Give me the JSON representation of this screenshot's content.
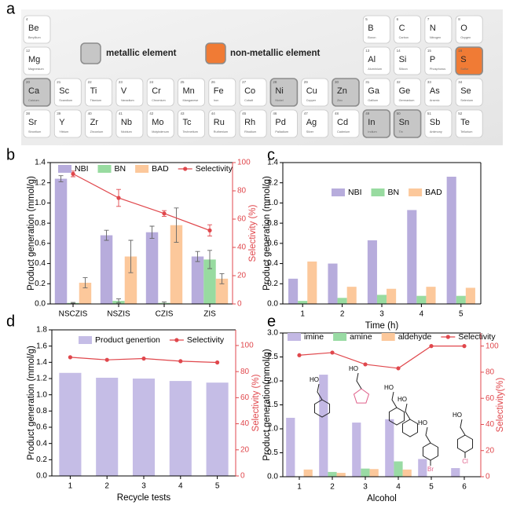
{
  "panel_labels": [
    "a",
    "b",
    "c",
    "d",
    "e"
  ],
  "periodic_table": {
    "legend": [
      {
        "name": "metallic element",
        "color": "#c6c6c6"
      },
      {
        "name": "non-metallic element",
        "color": "#f07b35"
      }
    ],
    "rows": [
      [
        {
          "number": 4,
          "symbol": "Be",
          "name": "Beryllium"
        },
        null,
        null,
        null,
        null,
        null,
        null,
        null,
        null,
        null,
        null,
        {
          "number": 5,
          "symbol": "B",
          "name": "Boron"
        },
        {
          "number": 6,
          "symbol": "C",
          "name": "Carbon"
        },
        {
          "number": 7,
          "symbol": "N",
          "name": "Nitrogen"
        },
        {
          "number": 8,
          "symbol": "O",
          "name": "Oxygen"
        }
      ],
      [
        {
          "number": 12,
          "symbol": "Mg",
          "name": "Magnesium"
        },
        null,
        null,
        null,
        null,
        null,
        null,
        null,
        null,
        null,
        null,
        {
          "number": 13,
          "symbol": "Al",
          "name": "Aluminium"
        },
        {
          "number": 14,
          "symbol": "Si",
          "name": "Silicon"
        },
        {
          "number": 15,
          "symbol": "P",
          "name": "Phosphorus"
        },
        {
          "number": 16,
          "symbol": "S",
          "name": "Sulfur",
          "group": 1
        }
      ],
      [
        {
          "number": 20,
          "symbol": "Ca",
          "name": "Calcium",
          "group": 0
        },
        {
          "number": 21,
          "symbol": "Sc",
          "name": "Scandium"
        },
        {
          "number": 22,
          "symbol": "Ti",
          "name": "Titanium"
        },
        {
          "number": 23,
          "symbol": "V",
          "name": "Vanadium"
        },
        {
          "number": 24,
          "symbol": "Cr",
          "name": "Chromium"
        },
        {
          "number": 25,
          "symbol": "Mn",
          "name": "Manganese"
        },
        {
          "number": 26,
          "symbol": "Fe",
          "name": "Iron"
        },
        {
          "number": 27,
          "symbol": "Co",
          "name": "Cobalt"
        },
        {
          "number": 28,
          "symbol": "Ni",
          "name": "Nickel",
          "group": 0
        },
        {
          "number": 29,
          "symbol": "Cu",
          "name": "Copper"
        },
        {
          "number": 30,
          "symbol": "Zn",
          "name": "Zinc",
          "group": 0
        },
        {
          "number": 31,
          "symbol": "Ga",
          "name": "Gallium"
        },
        {
          "number": 32,
          "symbol": "Ge",
          "name": "Germanium"
        },
        {
          "number": 33,
          "symbol": "As",
          "name": "Arsenic"
        },
        {
          "number": 34,
          "symbol": "Se",
          "name": "Selenium"
        }
      ],
      [
        {
          "number": 38,
          "symbol": "Sr",
          "name": "Strontium"
        },
        {
          "number": 39,
          "symbol": "Y",
          "name": "Yttrium"
        },
        {
          "number": 40,
          "symbol": "Zr",
          "name": "Zirconium"
        },
        {
          "number": 41,
          "symbol": "Nb",
          "name": "Niobium"
        },
        {
          "number": 42,
          "symbol": "Mo",
          "name": "Molybdenum"
        },
        {
          "number": 43,
          "symbol": "Tc",
          "name": "Technetium"
        },
        {
          "number": 44,
          "symbol": "Ru",
          "name": "Ruthenium"
        },
        {
          "number": 45,
          "symbol": "Rh",
          "name": "Rhodium"
        },
        {
          "number": 46,
          "symbol": "Pd",
          "name": "Palladium"
        },
        {
          "number": 47,
          "symbol": "Ag",
          "name": "Silver"
        },
        {
          "number": 48,
          "symbol": "Cd",
          "name": "Cadmium"
        },
        {
          "number": 49,
          "symbol": "In",
          "name": "Indium",
          "group": 0
        },
        {
          "number": 50,
          "symbol": "Sn",
          "name": "Tin",
          "group": 0
        },
        {
          "number": 51,
          "symbol": "Sb",
          "name": "Antimony"
        },
        {
          "number": 52,
          "symbol": "Te",
          "name": "Tellurium"
        }
      ]
    ]
  },
  "chart_data": [
    {
      "type": "bar",
      "categories": [
        "NSCZIS",
        "NSZIS",
        "CZIS",
        "ZIS"
      ],
      "ylabel": "Product generation (mmol/g)",
      "y2label": "Selectivity (%)",
      "y2color": "#e0474c",
      "ylim": [
        0,
        1.4
      ],
      "yticks": [
        {
          "value": 0,
          "label": "0.0"
        },
        0.2,
        0.4,
        0.6,
        0.8,
        {
          "value": 1,
          "label": "1.0"
        },
        1.2,
        1.4
      ],
      "y2lim": [
        0,
        100
      ],
      "y2ticks": [
        0,
        20,
        40,
        60,
        80,
        100
      ],
      "series": [
        {
          "name": "NBI",
          "color": "#b7acdc",
          "values": [
            1.24,
            0.68,
            0.71,
            0.47
          ],
          "errors": [
            0.03,
            0.05,
            0.06,
            0.05
          ]
        },
        {
          "name": "BN",
          "color": "#98dba0",
          "values": [
            0.01,
            0.03,
            0.01,
            0.44
          ],
          "errors": [
            0.005,
            0.02,
            0.01,
            0.09
          ]
        },
        {
          "name": "BAD",
          "color": "#fcc89b",
          "values": [
            0.21,
            0.47,
            0.78,
            0.25
          ],
          "errors": [
            0.05,
            0.16,
            0.17,
            0.05
          ]
        },
        {
          "name": "Selectivity",
          "color": "#e0474c",
          "type": "line",
          "axis": "y2",
          "values": [
            92,
            75,
            64,
            52
          ],
          "errors": [
            2,
            6,
            2,
            4
          ]
        }
      ]
    },
    {
      "type": "bar",
      "categories": [
        "1",
        "2",
        "3",
        "4",
        "5"
      ],
      "xlabel": "Time (h)",
      "ylabel": "Product generation (mmol/g)",
      "ylim": [
        0,
        1.4
      ],
      "yticks": [
        {
          "value": 0,
          "label": "0.0"
        },
        0.2,
        0.4,
        0.6,
        0.8,
        {
          "value": 1,
          "label": "1.0"
        },
        1.2,
        1.4
      ],
      "series": [
        {
          "name": "NBI",
          "color": "#b7acdc",
          "values": [
            0.25,
            0.4,
            0.63,
            0.93,
            1.26
          ]
        },
        {
          "name": "BN",
          "color": "#98dba0",
          "values": [
            0.03,
            0.06,
            0.09,
            0.08,
            0.08
          ]
        },
        {
          "name": "BAD",
          "color": "#fcc89b",
          "values": [
            0.42,
            0.17,
            0.15,
            0.17,
            0.16
          ]
        }
      ]
    },
    {
      "type": "bar",
      "categories": [
        "1",
        "2",
        "3",
        "4",
        "5"
      ],
      "xlabel": "Recycle tests",
      "ylabel": "Product generation (mmol/g)",
      "y2label": "Selectivity (%)",
      "y2color": "#e0474c",
      "ylim": [
        0,
        1.8
      ],
      "yticks": [
        {
          "value": 0,
          "label": "0.0"
        },
        0.2,
        0.4,
        0.6,
        0.8,
        {
          "value": 1,
          "label": "1.0"
        },
        1.2,
        1.4,
        1.6,
        1.8
      ],
      "y2lim": [
        0,
        112
      ],
      "y2ticks": [
        0,
        20,
        40,
        60,
        80,
        100
      ],
      "series": [
        {
          "name": "Product genertion",
          "color": "#c5bde6",
          "values": [
            1.27,
            1.21,
            1.2,
            1.17,
            1.15
          ]
        },
        {
          "name": "Selectivity",
          "color": "#e0474c",
          "type": "line",
          "axis": "y2",
          "values": [
            91,
            89,
            90,
            88,
            87
          ]
        }
      ]
    },
    {
      "type": "bar",
      "categories": [
        "1",
        "2",
        "3",
        "4",
        "5",
        "6"
      ],
      "xlabel": "Alcohol",
      "ylabel": "Product generation(mmol/g)",
      "y2label": "Selectivity(%)",
      "y2color": "#e0474c",
      "ylim": [
        0,
        3
      ],
      "yticks": [
        {
          "value": 0,
          "label": "0.0"
        },
        0.5,
        {
          "value": 1,
          "label": "1.0"
        },
        1.5,
        {
          "value": 2,
          "label": "2.0"
        },
        2.5,
        {
          "value": 3,
          "label": "3.0"
        }
      ],
      "y2lim": [
        0,
        110
      ],
      "y2ticks": [
        0,
        20,
        40,
        60,
        80,
        100
      ],
      "series": [
        {
          "name": "imine",
          "color": "#c3b8e4",
          "values": [
            1.23,
            2.13,
            1.13,
            1.2,
            0.37,
            0.18
          ]
        },
        {
          "name": "amine",
          "color": "#99dba4",
          "values": [
            0,
            0.1,
            0.17,
            0.32,
            0,
            0
          ]
        },
        {
          "name": "aldehyde",
          "color": "#fcc89b",
          "values": [
            0.15,
            0.08,
            0.16,
            0.15,
            0,
            0
          ]
        },
        {
          "name": "Selectivity",
          "color": "#e0474c",
          "type": "line",
          "axis": "y2",
          "values": [
            93,
            95,
            86,
            83,
            100,
            100
          ]
        }
      ],
      "structures": [
        {
          "label": "HO"
        },
        {
          "label": "HO",
          "ring": "furan"
        },
        {
          "label": "HO"
        },
        {
          "label": "HO"
        },
        {
          "label": "HO",
          "substituent": "Br"
        },
        {
          "label": "HO",
          "substituent": "Cl"
        }
      ]
    }
  ]
}
